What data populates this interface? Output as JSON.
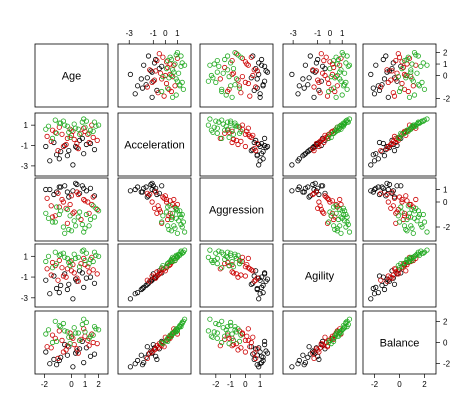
{
  "chart_data": {
    "type": "scatter",
    "subtype": "scatterplot-matrix",
    "variables": [
      "Age",
      "Acceleration",
      "Aggression",
      "Agility",
      "Balance"
    ],
    "group_colors": [
      "#000000",
      "#cc0000",
      "#22aa22"
    ],
    "axis_ticks": {
      "Age": [
        -2,
        -1,
        0,
        1,
        2
      ],
      "Acceleration": [
        -3,
        -1,
        0,
        1
      ],
      "Aggression": [
        -2,
        -1,
        0,
        1
      ],
      "Agility": [
        -3,
        -1,
        0,
        1
      ],
      "Balance": [
        -2,
        0,
        2
      ]
    },
    "axis_ranges": {
      "Age": [
        -2.4,
        2.4
      ],
      "Acceleration": [
        -3.6,
        1.8
      ],
      "Aggression": [
        -2.8,
        1.6
      ],
      "Agility": [
        -3.5,
        1.8
      ],
      "Balance": [
        -2.6,
        2.6
      ]
    },
    "tick_labels": {
      "top": {
        "Acceleration": [
          "-3",
          "-1",
          "0",
          "1"
        ],
        "Agility": [
          "-3",
          "-1",
          "0",
          "1"
        ]
      },
      "bottom": {
        "Age": [
          "-2",
          "0",
          "1",
          "2"
        ],
        "Aggression": [
          "-2",
          "-1",
          "0",
          "1"
        ],
        "Balance": [
          "-2",
          "0",
          "2"
        ]
      },
      "left": {
        "Acceleration": [
          "1",
          "-1",
          "-3"
        ],
        "Agility": [
          "1",
          "-1",
          "-3"
        ]
      },
      "right": {
        "Age": [
          "2",
          "1",
          "0",
          "-2"
        ],
        "Aggression": [
          "1",
          "0",
          "-2"
        ],
        "Balance": [
          "2",
          "0",
          "-2"
        ]
      }
    },
    "observations": [
      {
        "g": 0,
        "v": [
          -1.6,
          -2.5,
          1.0,
          -2.6,
          -2.0
        ]
      },
      {
        "g": 0,
        "v": [
          -0.8,
          -1.6,
          1.2,
          -1.8,
          -1.4
        ]
      },
      {
        "g": 0,
        "v": [
          -0.3,
          -2.0,
          0.8,
          -2.2,
          -1.2
        ]
      },
      {
        "g": 0,
        "v": [
          0.4,
          -1.2,
          1.4,
          -1.4,
          -0.8
        ]
      },
      {
        "g": 0,
        "v": [
          1.1,
          -0.9,
          0.9,
          -1.1,
          -0.5
        ]
      },
      {
        "g": 0,
        "v": [
          -1.3,
          -0.7,
          0.6,
          -0.9,
          -1.6
        ]
      },
      {
        "g": 0,
        "v": [
          0.9,
          -1.8,
          1.1,
          -2.0,
          -1.9
        ]
      },
      {
        "g": 0,
        "v": [
          -0.5,
          -1.0,
          1.3,
          -0.7,
          -0.2
        ]
      },
      {
        "g": 0,
        "v": [
          1.7,
          -1.4,
          0.5,
          -1.6,
          -1.1
        ]
      },
      {
        "g": 0,
        "v": [
          0.1,
          -2.9,
          0.9,
          -3.1,
          -2.3
        ]
      },
      {
        "g": 0,
        "v": [
          -1.9,
          -1.1,
          1.0,
          -1.3,
          -0.9
        ]
      },
      {
        "g": 0,
        "v": [
          0.6,
          -0.5,
          0.7,
          -0.4,
          -0.6
        ]
      },
      {
        "g": 0,
        "v": [
          -0.9,
          -2.3,
          1.2,
          -2.5,
          -1.7
        ]
      },
      {
        "g": 0,
        "v": [
          1.4,
          -0.8,
          1.1,
          -1.0,
          -1.3
        ]
      },
      {
        "g": 0,
        "v": [
          -0.2,
          -1.5,
          0.4,
          -1.7,
          -0.4
        ]
      },
      {
        "g": 0,
        "v": [
          0.8,
          -0.3,
          1.3,
          -0.6,
          0.1
        ]
      },
      {
        "g": 0,
        "v": [
          -1.1,
          -1.9,
          0.8,
          -2.1,
          -2.1
        ]
      },
      {
        "g": 0,
        "v": [
          0.3,
          -1.1,
          1.5,
          -1.2,
          -1.0
        ]
      },
      {
        "g": 1,
        "v": [
          -1.5,
          -0.6,
          -0.3,
          -0.8,
          -0.5
        ]
      },
      {
        "g": 1,
        "v": [
          -0.7,
          0.1,
          0.2,
          -0.1,
          0.2
        ]
      },
      {
        "g": 1,
        "v": [
          0.2,
          -0.4,
          -0.8,
          -0.6,
          -0.2
        ]
      },
      {
        "g": 1,
        "v": [
          1.0,
          0.4,
          0.1,
          0.2,
          0.6
        ]
      },
      {
        "g": 1,
        "v": [
          -0.4,
          -0.9,
          -0.5,
          -1.0,
          -0.7
        ]
      },
      {
        "g": 1,
        "v": [
          1.6,
          -0.2,
          0.4,
          -0.3,
          0.0
        ]
      },
      {
        "g": 1,
        "v": [
          -1.2,
          0.3,
          -1.1,
          0.1,
          0.4
        ]
      },
      {
        "g": 1,
        "v": [
          0.5,
          -1.3,
          0.6,
          -1.4,
          -1.0
        ]
      },
      {
        "g": 1,
        "v": [
          -0.1,
          0.6,
          -0.2,
          0.5,
          0.9
        ]
      },
      {
        "g": 1,
        "v": [
          1.3,
          -0.7,
          -0.9,
          -0.5,
          -0.3
        ]
      },
      {
        "g": 1,
        "v": [
          -1.8,
          -0.1,
          0.3,
          -0.2,
          -0.4
        ]
      },
      {
        "g": 1,
        "v": [
          0.7,
          0.2,
          -1.4,
          0.3,
          0.3
        ]
      },
      {
        "g": 1,
        "v": [
          -0.6,
          -1.1,
          0.0,
          -0.9,
          -0.9
        ]
      },
      {
        "g": 1,
        "v": [
          0.0,
          0.0,
          0.5,
          -0.4,
          0.5
        ]
      },
      {
        "g": 1,
        "v": [
          1.9,
          -0.5,
          -0.6,
          -0.7,
          -0.1
        ]
      },
      {
        "g": 1,
        "v": [
          -0.9,
          0.8,
          -0.4,
          0.6,
          1.1
        ]
      },
      {
        "g": 1,
        "v": [
          0.4,
          -0.8,
          0.8,
          -1.1,
          -0.6
        ]
      },
      {
        "g": 1,
        "v": [
          -1.4,
          0.5,
          -1.2,
          0.4,
          0.7
        ]
      },
      {
        "g": 1,
        "v": [
          1.2,
          0.1,
          0.0,
          0.0,
          0.2
        ]
      },
      {
        "g": 1,
        "v": [
          -0.3,
          -0.3,
          -1.7,
          -0.2,
          -0.3
        ]
      },
      {
        "g": 1,
        "v": [
          0.9,
          0.7,
          0.2,
          0.8,
          1.3
        ]
      },
      {
        "g": 1,
        "v": [
          -1.0,
          -1.5,
          0.7,
          -1.3,
          -1.5
        ]
      },
      {
        "g": 1,
        "v": [
          0.1,
          0.4,
          -0.9,
          0.2,
          0.4
        ]
      },
      {
        "g": 1,
        "v": [
          1.5,
          1.0,
          -0.2,
          0.9,
          0.8
        ]
      },
      {
        "g": 2,
        "v": [
          -1.7,
          0.9,
          -1.3,
          1.0,
          1.2
        ]
      },
      {
        "g": 2,
        "v": [
          -0.8,
          1.2,
          -0.7,
          1.2,
          1.5
        ]
      },
      {
        "g": 2,
        "v": [
          0.3,
          0.7,
          -1.9,
          0.8,
          0.9
        ]
      },
      {
        "g": 2,
        "v": [
          1.1,
          1.4,
          -1.0,
          1.3,
          1.9
        ]
      },
      {
        "g": 2,
        "v": [
          -0.2,
          0.3,
          -2.2,
          0.4,
          0.5
        ]
      },
      {
        "g": 2,
        "v": [
          1.8,
          0.9,
          -0.5,
          1.1,
          1.3
        ]
      },
      {
        "g": 2,
        "v": [
          -1.2,
          1.5,
          -1.6,
          1.4,
          2.0
        ]
      },
      {
        "g": 2,
        "v": [
          0.6,
          0.1,
          -0.8,
          0.0,
          0.2
        ]
      },
      {
        "g": 2,
        "v": [
          -0.5,
          1.0,
          -2.5,
          0.9,
          1.1
        ]
      },
      {
        "g": 2,
        "v": [
          1.4,
          0.5,
          -1.4,
          0.7,
          0.6
        ]
      },
      {
        "g": 2,
        "v": [
          -1.9,
          0.6,
          -0.9,
          0.5,
          0.8
        ]
      },
      {
        "g": 2,
        "v": [
          0.8,
          1.3,
          -1.8,
          1.5,
          1.7
        ]
      },
      {
        "g": 2,
        "v": [
          -0.1,
          -0.2,
          -1.1,
          0.1,
          -0.1
        ]
      },
      {
        "g": 2,
        "v": [
          1.0,
          0.8,
          -2.1,
          0.6,
          1.0
        ]
      },
      {
        "g": 2,
        "v": [
          -1.1,
          0.2,
          -0.4,
          0.3,
          0.1
        ]
      },
      {
        "g": 2,
        "v": [
          0.2,
          1.1,
          -1.5,
          1.2,
          1.4
        ]
      },
      {
        "g": 2,
        "v": [
          1.6,
          0.4,
          -0.3,
          0.5,
          0.7
        ]
      },
      {
        "g": 2,
        "v": [
          -0.6,
          1.4,
          -2.0,
          1.3,
          1.8
        ]
      },
      {
        "g": 2,
        "v": [
          0.5,
          0.6,
          -1.2,
          0.9,
          0.9
        ]
      },
      {
        "g": 2,
        "v": [
          2.0,
          1.0,
          -0.7,
          1.0,
          1.2
        ]
      },
      {
        "g": 2,
        "v": [
          -1.4,
          -0.3,
          -1.6,
          -0.1,
          0.0
        ]
      },
      {
        "g": 2,
        "v": [
          0.9,
          1.6,
          -2.4,
          1.6,
          2.2
        ]
      },
      {
        "g": 2,
        "v": [
          -0.3,
          0.9,
          -0.6,
          0.8,
          1.0
        ]
      },
      {
        "g": 2,
        "v": [
          1.3,
          0.2,
          -1.9,
          0.3,
          0.4
        ]
      },
      {
        "g": 2,
        "v": [
          -0.9,
          1.2,
          -1.0,
          1.1,
          1.6
        ]
      },
      {
        "g": 2,
        "v": [
          0.0,
          0.5,
          -2.3,
          0.6,
          0.6
        ]
      },
      {
        "g": 2,
        "v": [
          1.7,
          1.3,
          -1.2,
          1.4,
          1.5
        ]
      }
    ]
  }
}
